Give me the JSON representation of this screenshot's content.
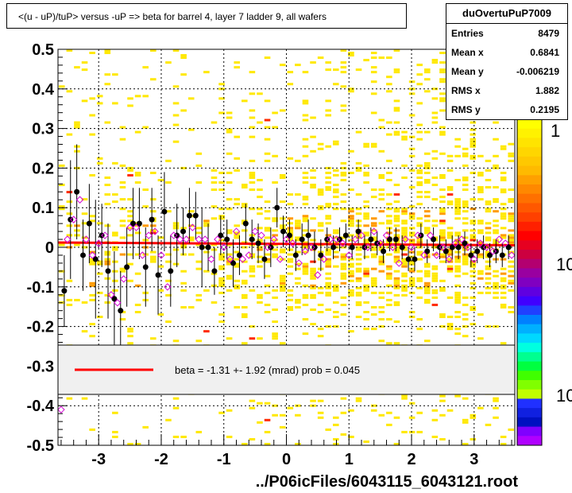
{
  "title": "<(u - uP)/tuP> versus  -uP => beta for barrel 4, layer 7 ladder 9, all wafers",
  "stats": {
    "name": "duOvertuPuP7009",
    "rows": [
      {
        "label": "Entries",
        "value": "8479"
      },
      {
        "label": "Mean x",
        "value": "0.6841"
      },
      {
        "label": "Mean y",
        "value": "-0.006219"
      },
      {
        "label": "RMS x",
        "value": "1.882"
      },
      {
        "label": "RMS y",
        "value": "0.2195"
      }
    ]
  },
  "fit_legend": "beta =   -1.31 +-  1.92 (mrad) prob = 0.045",
  "xlabel": "../P06icFiles/6043115_6043121.root",
  "colorbar_labels": [
    "1",
    "10",
    "10"
  ],
  "colors": {
    "fit_line": "#ff0000",
    "profile_black": "#000000",
    "profile_open": "#d400d4",
    "cell_yellow": "#ffe800",
    "cell_orange": "#ff9a00",
    "cell_red": "#ff2a00",
    "grid": "#000000"
  },
  "chart_data": {
    "type": "scatter",
    "xlim": [
      -3.65,
      3.65
    ],
    "ylim": [
      -0.5,
      0.5
    ],
    "xticks": [
      "-3",
      "-2",
      "-1",
      "0",
      "1",
      "2",
      "3"
    ],
    "yticks": [
      "0.5",
      "0.4",
      "0.3",
      "0.2",
      "0.1",
      "0",
      "-0.1",
      "-0.2",
      "-0.3",
      "-0.4",
      "-0.5"
    ],
    "grid": true,
    "fit": {
      "x": [
        -3.65,
        3.65
      ],
      "y": [
        0.012,
        0.005
      ]
    },
    "series": [
      {
        "marker": "filled-circle",
        "x": [
          -3.55,
          -3.45,
          -3.35,
          -3.25,
          -3.15,
          -3.05,
          -2.95,
          -2.85,
          -2.75,
          -2.65,
          -2.55,
          -2.45,
          -2.35,
          -2.25,
          -2.15,
          -2.05,
          -1.95,
          -1.85,
          -1.75,
          -1.65,
          -1.55,
          -1.45,
          -1.35,
          -1.25,
          -1.15,
          -1.05,
          -0.95,
          -0.85,
          -0.75,
          -0.65,
          -0.55,
          -0.45,
          -0.35,
          -0.25,
          -0.15,
          -0.05,
          0.05,
          0.15,
          0.25,
          0.35,
          0.45,
          0.55,
          0.65,
          0.75,
          0.85,
          0.95,
          1.05,
          1.15,
          1.25,
          1.35,
          1.45,
          1.55,
          1.65,
          1.75,
          1.85,
          1.95,
          2.05,
          2.15,
          2.25,
          2.35,
          2.45,
          2.55,
          2.65,
          2.75,
          2.85,
          2.95,
          3.05,
          3.15,
          3.25,
          3.35,
          3.45,
          3.55
        ],
        "y": [
          -0.11,
          0.07,
          0.14,
          -0.02,
          0.06,
          -0.03,
          0.03,
          -0.06,
          -0.13,
          -0.16,
          -0.05,
          0.06,
          0.06,
          -0.05,
          0.07,
          -0.07,
          0.09,
          -0.06,
          0.03,
          0.04,
          0.08,
          0.08,
          0.0,
          0.0,
          -0.06,
          0.03,
          0.02,
          -0.04,
          -0.02,
          0.06,
          0.02,
          0.01,
          -0.03,
          0.0,
          0.1,
          0.04,
          0.03,
          -0.02,
          0.02,
          0.03,
          0.0,
          -0.02,
          0.02,
          0.0,
          0.02,
          0.03,
          0.0,
          0.04,
          0.0,
          0.02,
          0.01,
          -0.01,
          0.02,
          0.02,
          0.0,
          -0.03,
          -0.03,
          0.03,
          -0.01,
          0.02,
          0.0,
          -0.01,
          0.0,
          0.0,
          0.01,
          -0.02,
          -0.01,
          0.0,
          -0.02,
          -0.01,
          -0.02,
          0.0
        ],
        "err": [
          0.09,
          0.15,
          0.12,
          0.09,
          0.1,
          0.15,
          0.08,
          0.12,
          0.12,
          0.1,
          0.1,
          0.09,
          0.09,
          0.1,
          0.08,
          0.1,
          0.1,
          0.09,
          0.08,
          0.06,
          0.07,
          0.06,
          0.1,
          0.06,
          0.06,
          0.05,
          0.05,
          0.06,
          0.05,
          0.05,
          0.05,
          0.05,
          0.05,
          0.05,
          0.05,
          0.04,
          0.04,
          0.04,
          0.04,
          0.04,
          0.04,
          0.04,
          0.03,
          0.03,
          0.03,
          0.03,
          0.03,
          0.03,
          0.03,
          0.03,
          0.03,
          0.03,
          0.03,
          0.03,
          0.03,
          0.03,
          0.03,
          0.03,
          0.03,
          0.03,
          0.03,
          0.03,
          0.03,
          0.03,
          0.03,
          0.03,
          0.03,
          0.03,
          0.03,
          0.03,
          0.03,
          0.03
        ]
      },
      {
        "marker": "open-diamond",
        "x": [
          -3.6,
          -3.5,
          -3.4,
          -3.3,
          -3.2,
          -3.1,
          -3.0,
          -2.9,
          -2.8,
          -2.7,
          -2.6,
          -2.5,
          -2.4,
          -2.3,
          -2.2,
          -2.1,
          -2.0,
          -1.9,
          -1.8,
          -1.7,
          -1.6,
          -1.5,
          -1.4,
          -1.3,
          -1.2,
          -1.1,
          -1.0,
          -0.9,
          -0.8,
          -0.7,
          -0.6,
          -0.5,
          -0.4,
          -0.3,
          -0.2,
          -0.1,
          0.0,
          0.1,
          0.2,
          0.3,
          0.4,
          0.5,
          0.6,
          0.7,
          0.8,
          0.9,
          1.0,
          1.1,
          1.2,
          1.3,
          1.4,
          1.5,
          1.6,
          1.7,
          1.8,
          1.9,
          2.0,
          2.1,
          2.2,
          2.3,
          2.4,
          2.5,
          2.6,
          2.7,
          2.8,
          2.9,
          3.0,
          3.1,
          3.2,
          3.3,
          3.4,
          3.5,
          3.6
        ],
        "y": [
          -0.41,
          0.02,
          0.07,
          0.12,
          0.02,
          -0.02,
          0.01,
          0.03,
          -0.12,
          -0.14,
          -0.08,
          0.05,
          0.05,
          -0.02,
          0.03,
          0.04,
          -0.02,
          -0.1,
          0.03,
          0.02,
          0.02,
          0.05,
          0.02,
          0.02,
          -0.03,
          0.02,
          0.0,
          -0.03,
          0.04,
          -0.03,
          -0.02,
          0.04,
          0.03,
          0.0,
          0.02,
          -0.03,
          0.02,
          0.01,
          -0.04,
          -0.01,
          0.0,
          -0.07,
          -0.03,
          0.02,
          0.02,
          0.01,
          -0.02,
          0.02,
          0.03,
          0.0,
          0.04,
          0.01,
          0.03,
          0.0,
          -0.04,
          0.02,
          0.0,
          0.03,
          -0.02,
          0.03,
          -0.02,
          0.0,
          -0.03,
          0.01,
          0.02,
          0.0,
          -0.03,
          0.01,
          0.0,
          -0.01,
          0.02,
          0.01,
          -0.02
        ]
      }
    ]
  }
}
